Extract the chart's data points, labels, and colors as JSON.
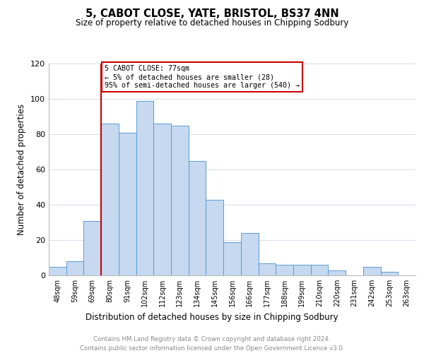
{
  "title": "5, CABOT CLOSE, YATE, BRISTOL, BS37 4NN",
  "subtitle": "Size of property relative to detached houses in Chipping Sodbury",
  "xlabel": "Distribution of detached houses by size in Chipping Sodbury",
  "ylabel": "Number of detached properties",
  "bar_values": [
    5,
    8,
    31,
    86,
    81,
    99,
    86,
    85,
    65,
    43,
    19,
    24,
    7,
    6,
    6,
    6,
    3,
    0,
    5,
    2,
    0
  ],
  "bin_labels": [
    "48sqm",
    "59sqm",
    "69sqm",
    "80sqm",
    "91sqm",
    "102sqm",
    "112sqm",
    "123sqm",
    "134sqm",
    "145sqm",
    "156sqm",
    "166sqm",
    "177sqm",
    "188sqm",
    "199sqm",
    "210sqm",
    "220sqm",
    "231sqm",
    "242sqm",
    "253sqm",
    "263sqm"
  ],
  "bar_color": "#c6d9f0",
  "bar_edge_color": "#5b9bd5",
  "vline_x_index": 3,
  "vline_color": "#cc0000",
  "annotation_text": "5 CABOT CLOSE: 77sqm\n← 5% of detached houses are smaller (28)\n95% of semi-detached houses are larger (540) →",
  "annotation_box_edge_color": "#cc0000",
  "annotation_box_face_color": "#ffffff",
  "ylim": [
    0,
    120
  ],
  "yticks": [
    0,
    20,
    40,
    60,
    80,
    100,
    120
  ],
  "footer1": "Contains HM Land Registry data © Crown copyright and database right 2024.",
  "footer2": "Contains public sector information licensed under the Open Government Licence v3.0.",
  "background_color": "#ffffff",
  "grid_color": "#d4dff0"
}
